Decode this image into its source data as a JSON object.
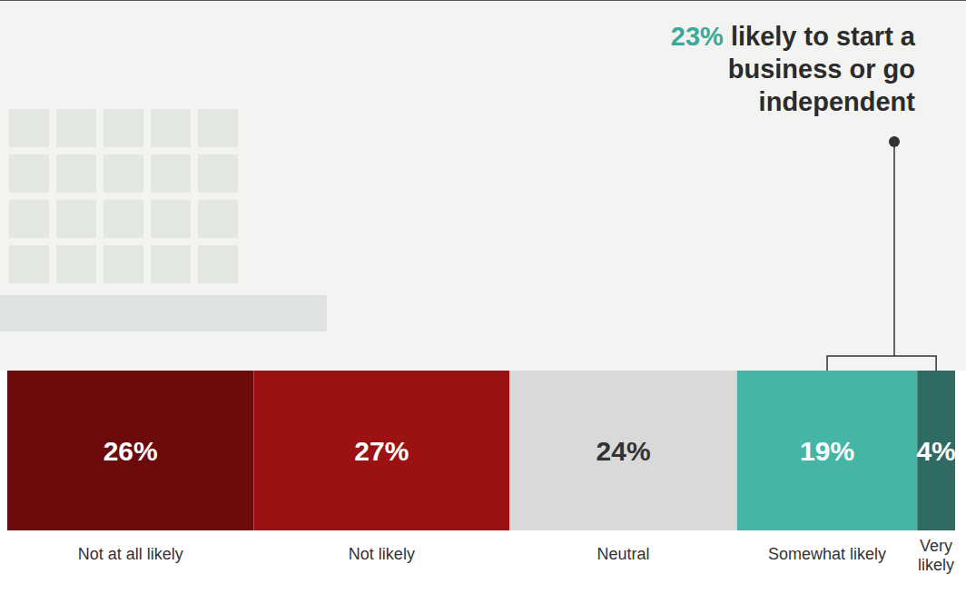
{
  "chart_data": {
    "type": "bar",
    "orientation": "horizontal",
    "stacked": true,
    "data_labels": true,
    "tick_labels": false,
    "xlim": [
      0,
      100
    ],
    "categories": [
      null
    ],
    "series": [
      {
        "name": "Not at all likely",
        "color": "#6b0b0b",
        "values": [
          26
        ],
        "value_labels": [
          "26%"
        ]
      },
      {
        "name": "Not likely",
        "color": "#9c1212",
        "values": [
          27
        ],
        "value_labels": [
          "27%"
        ]
      },
      {
        "name": "Neutral",
        "color": "#d9d9d9",
        "values": [
          24
        ],
        "value_labels": [
          "24%"
        ]
      },
      {
        "name": "Somewhat likely",
        "color": "#45b5a6",
        "values": [
          19
        ],
        "value_labels": [
          "19%"
        ]
      },
      {
        "name": "Very likely",
        "color": "#2f6b63",
        "values": [
          4
        ],
        "value_labels": [
          "4%"
        ]
      }
    ],
    "annotations": [
      {
        "value": 23,
        "label": "23%",
        "text": "likely to start a business or go independent"
      }
    ]
  }
}
